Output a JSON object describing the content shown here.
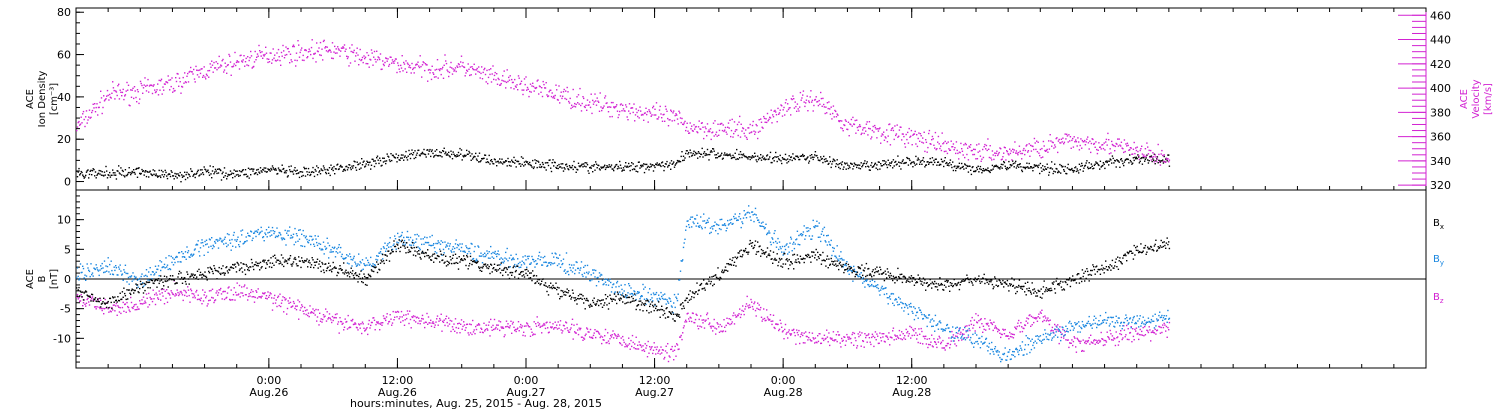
{
  "chart_data": [
    {
      "panel": "ion-density-velocity",
      "type": "scatter",
      "ylabel_left": [
        "ACE",
        "Ion Density",
        "[cm⁻³]"
      ],
      "ylabel_right": [
        "ACE",
        "Velocity",
        "[km/s]"
      ],
      "ylim_left": [
        -4,
        82
      ],
      "ylim_right": [
        316,
        466
      ],
      "yticks_left": [
        0,
        20,
        40,
        60,
        80
      ],
      "yticks_right": [
        320,
        340,
        360,
        380,
        400,
        420,
        440,
        460
      ],
      "colors": {
        "density": "#000000",
        "velocity": "#d222d2"
      },
      "series": [
        {
          "key": "density",
          "axis": "left",
          "x_hours": [
            0,
            3,
            6,
            9,
            12,
            15,
            18,
            21,
            24,
            27,
            30,
            33,
            36,
            39,
            42,
            45,
            48,
            51,
            54,
            56,
            57,
            60,
            63,
            66,
            69,
            72,
            75,
            78,
            81,
            84,
            87,
            90,
            93,
            96,
            99,
            102
          ],
          "values": [
            4,
            4,
            5,
            3,
            5,
            4,
            6,
            4,
            6,
            9,
            12,
            14,
            13,
            10,
            9,
            8,
            7,
            7,
            8,
            9,
            14,
            13,
            12,
            11,
            12,
            7,
            8,
            10,
            9,
            6,
            8,
            7,
            6,
            9,
            11,
            10
          ]
        },
        {
          "key": "velocity",
          "axis": "right",
          "x_hours": [
            0,
            3,
            6,
            9,
            12,
            15,
            18,
            21,
            24,
            27,
            30,
            33,
            36,
            39,
            42,
            45,
            48,
            51,
            54,
            56,
            57,
            60,
            63,
            66,
            69,
            72,
            75,
            78,
            81,
            84,
            87,
            90,
            93,
            96,
            99,
            102
          ],
          "values": [
            368,
            395,
            398,
            404,
            415,
            422,
            428,
            430,
            432,
            425,
            420,
            416,
            418,
            408,
            402,
            395,
            388,
            384,
            378,
            375,
            369,
            367,
            365,
            385,
            392,
            370,
            365,
            360,
            352,
            348,
            347,
            352,
            357,
            355,
            348,
            342
          ]
        }
      ]
    },
    {
      "panel": "magnetic-field",
      "type": "scatter",
      "ylabel_left": [
        "ACE",
        "B",
        "[nT]"
      ],
      "ylim": [
        -15,
        15
      ],
      "yticks": [
        -10,
        -5,
        0,
        5,
        10
      ],
      "zero_line": true,
      "legend": [
        "B",
        "B",
        "B"
      ],
      "legend_subscripts": [
        "x",
        "y",
        "z"
      ],
      "legend_position": "right",
      "colors": {
        "bx": "#000000",
        "by": "#1a87e0",
        "bz": "#d222d2"
      },
      "series": [
        {
          "key": "bx",
          "x_hours": [
            0,
            3,
            6,
            9,
            12,
            15,
            18,
            21,
            24,
            27,
            30,
            33,
            36,
            39,
            42,
            45,
            48,
            51,
            54,
            56,
            57,
            60,
            63,
            66,
            69,
            72,
            75,
            78,
            81,
            84,
            87,
            90,
            93,
            96,
            99,
            102
          ],
          "values": [
            -2,
            -4,
            -1,
            0,
            1,
            2,
            3,
            3,
            2,
            0,
            6,
            4,
            3,
            2,
            1,
            -2,
            -4,
            -3,
            -5,
            -6,
            -3,
            1,
            6,
            3,
            4,
            2,
            1,
            0,
            -1,
            0,
            -1,
            -2,
            0,
            2,
            5,
            6
          ]
        },
        {
          "key": "by",
          "x_hours": [
            0,
            3,
            6,
            9,
            12,
            15,
            18,
            21,
            24,
            27,
            30,
            33,
            36,
            39,
            42,
            45,
            48,
            51,
            54,
            56,
            57,
            60,
            63,
            66,
            69,
            72,
            75,
            78,
            81,
            84,
            87,
            90,
            93,
            96,
            99,
            102
          ],
          "values": [
            1,
            2,
            0,
            3,
            6,
            7,
            8,
            7,
            5,
            2,
            7,
            6,
            5,
            4,
            3,
            3,
            1,
            -2,
            -3,
            -4,
            10,
            9,
            11,
            5,
            9,
            2,
            -2,
            -5,
            -8,
            -10,
            -13,
            -10,
            -8,
            -7,
            -7,
            -6
          ]
        },
        {
          "key": "bz",
          "x_hours": [
            0,
            3,
            6,
            9,
            12,
            15,
            18,
            21,
            24,
            27,
            30,
            33,
            36,
            39,
            42,
            45,
            48,
            51,
            54,
            56,
            57,
            60,
            63,
            66,
            69,
            72,
            75,
            78,
            81,
            84,
            87,
            90,
            93,
            96,
            99,
            102
          ],
          "values": [
            -3,
            -5,
            -4,
            -2,
            -3,
            -2,
            -3,
            -5,
            -7,
            -8,
            -6,
            -7,
            -8,
            -8,
            -8,
            -8,
            -9,
            -10,
            -12,
            -12,
            -6,
            -8,
            -4,
            -9,
            -10,
            -10,
            -10,
            -9,
            -11,
            -7,
            -9,
            -6,
            -11,
            -10,
            -9,
            -8
          ]
        }
      ]
    }
  ],
  "x_axis": {
    "range_hours": [
      0,
      126
    ],
    "ticks": [
      {
        "hour": 18,
        "time": "0:00",
        "date": "Aug.26"
      },
      {
        "hour": 30,
        "time": "12:00",
        "date": "Aug.26"
      },
      {
        "hour": 42,
        "time": "0:00",
        "date": "Aug.27"
      },
      {
        "hour": 54,
        "time": "12:00",
        "date": "Aug.27"
      },
      {
        "hour": 66,
        "time": "0:00",
        "date": "Aug.28"
      },
      {
        "hour": 78,
        "time": "12:00",
        "date": "Aug.28"
      }
    ],
    "xlabel": "hours:minutes, Aug. 25, 2015 - Aug. 28, 2015"
  }
}
